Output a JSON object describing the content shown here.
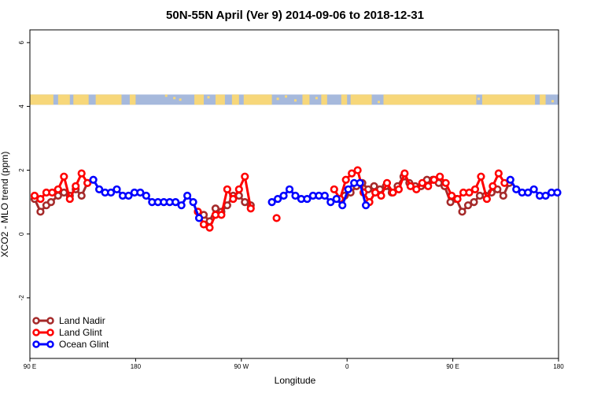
{
  "chart_data": {
    "type": "line",
    "title": "50N-55N April (Ver 9)   2014-09-06 to 2018-12-31",
    "xlabel": "Longitude",
    "ylabel": "XCO2 - MLO trend (ppm)",
    "x_ticks": [
      {
        "value": 90,
        "label": "90 E"
      },
      {
        "value": 180,
        "label": "180"
      },
      {
        "value": 270,
        "label": "90 W"
      },
      {
        "value": 360,
        "label": "0"
      },
      {
        "value": 450,
        "label": "90 E"
      },
      {
        "value": 540,
        "label": "180"
      }
    ],
    "y_ticks": [
      {
        "value": -2,
        "label": "-2"
      },
      {
        "value": 0,
        "label": "0"
      },
      {
        "value": 2,
        "label": "2"
      },
      {
        "value": 4,
        "label": "4"
      },
      {
        "value": 6,
        "label": "6"
      }
    ],
    "xlim": [
      90,
      540
    ],
    "ylim": [
      -3.9,
      6.4
    ],
    "land_band_y": 4.2,
    "colors": {
      "ocean": "#a6b9dc",
      "land": "#f7d77a"
    },
    "legend_position": "bottom-left",
    "series": [
      {
        "name": "Land Nadir",
        "color": "#a52a2a",
        "segments": [
          [
            [
              94,
              1.1
            ],
            [
              99,
              0.7
            ],
            [
              104,
              0.9
            ],
            [
              108,
              1.0
            ],
            [
              114,
              1.2
            ],
            [
              119,
              1.3
            ],
            [
              124,
              1.2
            ],
            [
              129,
              1.4
            ],
            [
              134,
              1.2
            ],
            [
              139,
              1.6
            ]
          ],
          [
            [
              233,
              0.7
            ],
            [
              238,
              0.6
            ],
            [
              243,
              0.4
            ],
            [
              248,
              0.8
            ],
            [
              253,
              0.7
            ],
            [
              258,
              0.9
            ],
            [
              263,
              1.2
            ],
            [
              268,
              1.2
            ],
            [
              273,
              1.0
            ],
            [
              278,
              0.9
            ]
          ],
          [
            [
              358,
              1.2
            ],
            [
              363,
              1.3
            ],
            [
              368,
              1.5
            ],
            [
              373,
              1.6
            ],
            [
              378,
              1.4
            ],
            [
              383,
              1.5
            ],
            [
              388,
              1.4
            ],
            [
              393,
              1.5
            ],
            [
              398,
              1.3
            ],
            [
              403,
              1.5
            ],
            [
              408,
              1.8
            ],
            [
              413,
              1.6
            ],
            [
              418,
              1.5
            ],
            [
              423,
              1.5
            ],
            [
              428,
              1.7
            ],
            [
              433,
              1.7
            ],
            [
              438,
              1.6
            ],
            [
              443,
              1.5
            ],
            [
              448,
              1.0
            ],
            [
              453,
              1.1
            ],
            [
              458,
              0.7
            ],
            [
              463,
              0.9
            ],
            [
              468,
              1.0
            ],
            [
              473,
              1.2
            ],
            [
              478,
              1.2
            ],
            [
              483,
              1.3
            ],
            [
              488,
              1.4
            ],
            [
              493,
              1.2
            ],
            [
              498,
              1.6
            ]
          ]
        ]
      },
      {
        "name": "Land Glint",
        "color": "#ff0000",
        "segments": [
          [
            [
              94,
              1.2
            ],
            [
              99,
              1.1
            ],
            [
              104,
              1.3
            ],
            [
              109,
              1.3
            ],
            [
              114,
              1.4
            ],
            [
              119,
              1.8
            ],
            [
              124,
              1.1
            ],
            [
              129,
              1.5
            ],
            [
              134,
              1.9
            ],
            [
              139,
              1.6
            ]
          ],
          [
            [
              233,
              0.7
            ],
            [
              238,
              0.3
            ],
            [
              243,
              0.2
            ],
            [
              248,
              0.6
            ],
            [
              253,
              0.6
            ],
            [
              258,
              1.4
            ],
            [
              263,
              1.1
            ],
            [
              268,
              1.4
            ],
            [
              273,
              1.8
            ],
            [
              278,
              0.8
            ]
          ],
          [
            [
              300,
              0.5
            ]
          ],
          [
            [
              349,
              1.4
            ],
            [
              354,
              1.1
            ],
            [
              359,
              1.7
            ],
            [
              364,
              1.9
            ],
            [
              369,
              2.0
            ],
            [
              374,
              1.3
            ],
            [
              379,
              1.0
            ],
            [
              384,
              1.3
            ],
            [
              389,
              1.2
            ],
            [
              394,
              1.6
            ],
            [
              399,
              1.3
            ],
            [
              404,
              1.4
            ],
            [
              409,
              1.9
            ],
            [
              414,
              1.5
            ],
            [
              419,
              1.4
            ],
            [
              424,
              1.6
            ],
            [
              429,
              1.5
            ],
            [
              434,
              1.7
            ],
            [
              439,
              1.8
            ],
            [
              444,
              1.6
            ],
            [
              449,
              1.2
            ],
            [
              454,
              1.1
            ],
            [
              459,
              1.3
            ],
            [
              464,
              1.3
            ],
            [
              469,
              1.4
            ],
            [
              474,
              1.8
            ],
            [
              479,
              1.1
            ],
            [
              484,
              1.5
            ],
            [
              489,
              1.9
            ],
            [
              494,
              1.6
            ]
          ]
        ]
      },
      {
        "name": "Ocean Glint",
        "color": "#0000ff",
        "segments": [
          [
            [
              144,
              1.7
            ],
            [
              149,
              1.4
            ],
            [
              154,
              1.3
            ],
            [
              159,
              1.3
            ],
            [
              164,
              1.4
            ],
            [
              169,
              1.2
            ],
            [
              174,
              1.2
            ],
            [
              179,
              1.3
            ],
            [
              184,
              1.3
            ],
            [
              189,
              1.2
            ],
            [
              194,
              1.0
            ],
            [
              199,
              1.0
            ],
            [
              204,
              1.0
            ],
            [
              209,
              1.0
            ],
            [
              214,
              1.0
            ],
            [
              219,
              0.9
            ],
            [
              224,
              1.2
            ],
            [
              229,
              1.0
            ],
            [
              234,
              0.5
            ]
          ],
          [
            [
              296,
              1.0
            ],
            [
              301,
              1.1
            ],
            [
              306,
              1.2
            ],
            [
              311,
              1.4
            ],
            [
              316,
              1.2
            ],
            [
              321,
              1.1
            ],
            [
              326,
              1.1
            ],
            [
              331,
              1.2
            ],
            [
              336,
              1.2
            ],
            [
              341,
              1.2
            ],
            [
              346,
              1.0
            ],
            [
              351,
              1.1
            ],
            [
              356,
              0.9
            ],
            [
              361,
              1.4
            ],
            [
              366,
              1.6
            ],
            [
              371,
              1.6
            ],
            [
              376,
              0.9
            ]
          ],
          [
            [
              499,
              1.7
            ],
            [
              504,
              1.4
            ],
            [
              509,
              1.3
            ],
            [
              514,
              1.3
            ],
            [
              519,
              1.4
            ],
            [
              524,
              1.2
            ],
            [
              529,
              1.2
            ],
            [
              534,
              1.3
            ],
            [
              539,
              1.3
            ]
          ]
        ]
      }
    ]
  }
}
